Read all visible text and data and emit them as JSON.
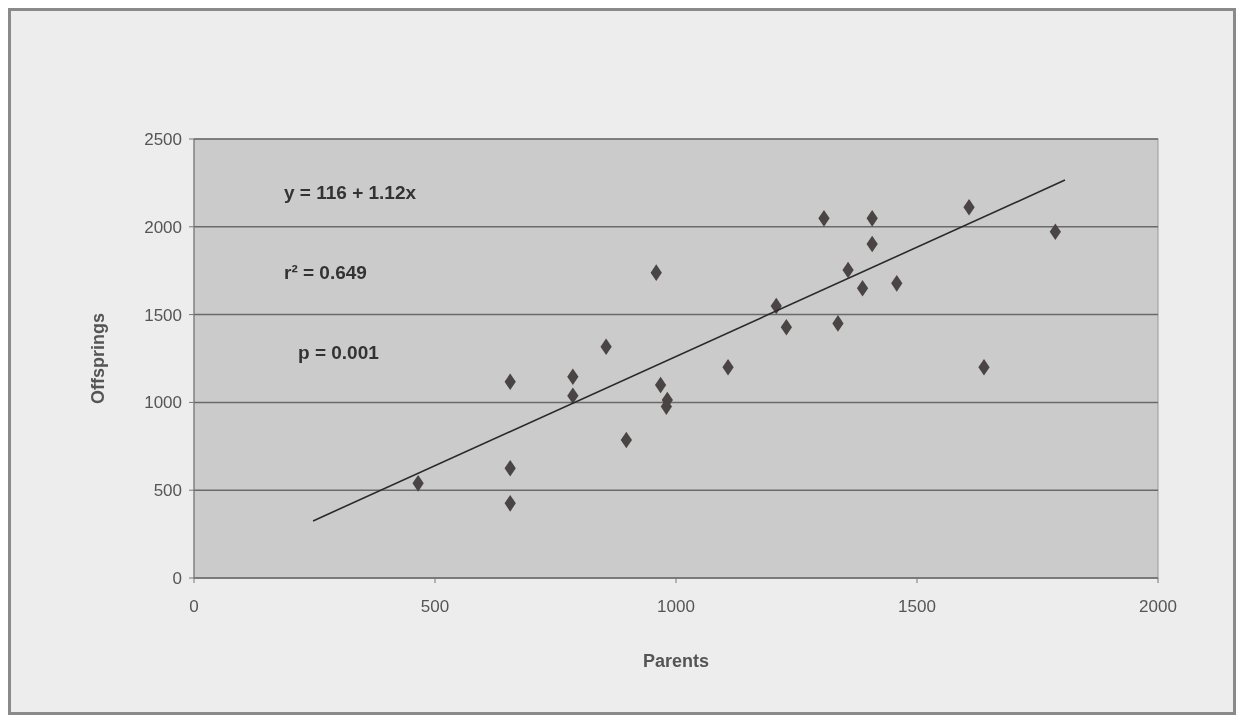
{
  "chart_data": {
    "type": "scatter",
    "xlabel": "Parents",
    "ylabel": "Offsprings",
    "xlim": [
      0,
      2000
    ],
    "ylim": [
      0,
      2500
    ],
    "xticks": [
      0,
      500,
      1000,
      1500,
      2000
    ],
    "yticks": [
      0,
      500,
      1000,
      1500,
      2000,
      2500
    ],
    "grid": "y",
    "marker": "diamond",
    "annotations": [
      "y = 116 + 1.12x",
      "r² = 0.649",
      "p = 0.001"
    ],
    "series": [
      {
        "color": "#4a4444",
        "x": [
          465,
          656,
          656,
          656,
          786,
          786,
          855,
          897,
          959,
          968,
          982,
          980,
          1108,
          1208,
          1229,
          1307,
          1407,
          1407,
          1357,
          1387,
          1458,
          1336,
          1608,
          1787,
          1639
        ],
        "values": [
          539,
          1118,
          625,
          425,
          1146,
          1038,
          1317,
          786,
          1739,
          1099,
          1014,
          976,
          1200,
          1549,
          1428,
          2048,
          2048,
          1902,
          1754,
          1650,
          1678,
          1450,
          2111,
          1972,
          1200
        ]
      },
      {
        "type": "line",
        "color": "#2a2a2a",
        "marker": "none",
        "x": [
          247,
          1807
        ],
        "values": [
          325,
          2266
        ]
      }
    ]
  }
}
